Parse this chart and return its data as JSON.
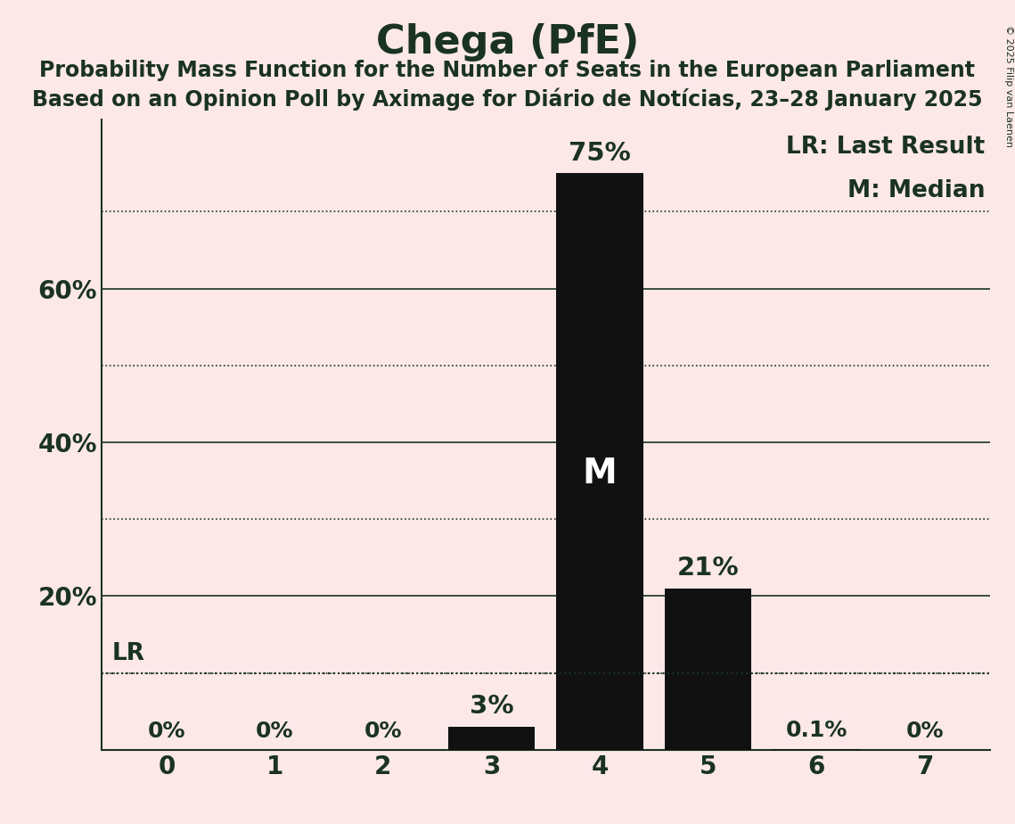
{
  "title": "Chega (PfE)",
  "subtitle1": "Probability Mass Function for the Number of Seats in the European Parliament",
  "subtitle2": "Based on an Opinion Poll by Aximage for Diário de Notícias, 23–28 January 2025",
  "copyright": "© 2025 Filip van Laenen",
  "seats": [
    0,
    1,
    2,
    3,
    4,
    5,
    6,
    7
  ],
  "probabilities": [
    0.0,
    0.0,
    0.0,
    3.0,
    75.0,
    21.0,
    0.1,
    0.0
  ],
  "bar_color": "#111111",
  "background_color": "#fce8e8",
  "text_color": "#1a3320",
  "median_seat": 4,
  "lr_value": 10.0,
  "ylim": [
    0,
    82
  ],
  "yticks": [
    20,
    40,
    60
  ],
  "solid_lines": [
    20,
    40,
    60
  ],
  "dotted_lines": [
    10,
    30,
    50,
    70
  ],
  "legend_lr": "LR: Last Result",
  "legend_m": "M: Median",
  "bar_labels": [
    "0%",
    "0%",
    "0%",
    "3%",
    "75%",
    "21%",
    "0.1%",
    "0%"
  ],
  "figsize": [
    11.39,
    9.24
  ],
  "dpi": 100
}
